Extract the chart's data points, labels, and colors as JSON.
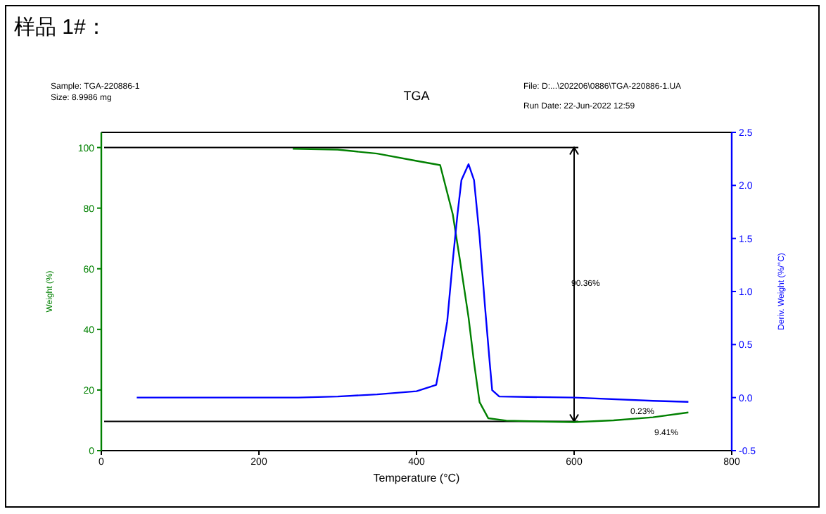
{
  "chart_data": {
    "type": "line",
    "title": "样品 1#：",
    "subtitle": "TGA",
    "xlabel": "Temperature (°C)",
    "ylabel": "Weight (%)",
    "y2label": "Deriv. Weight (%/°C)",
    "annotations": [
      "Sample: TGA-220886-1",
      "Size:  8.9986 mg",
      "File: D:...\\202206\\0886\\TGA-220886-1.UA",
      "Run Date: 22-Jun-2022  12:59",
      "90.36%",
      "0.23%",
      "9.41%"
    ],
    "ref_lines": [
      {
        "axis": "x",
        "value": 600
      },
      {
        "axis": "y",
        "value": 100
      },
      {
        "axis": "y",
        "value": 9.64
      }
    ],
    "xlim": [
      0,
      800
    ],
    "xticks": [
      0,
      200,
      400,
      600,
      800
    ],
    "ylim": [
      0,
      105
    ],
    "yticks": [
      0,
      20,
      40,
      60,
      80,
      100
    ],
    "y2lim": [
      -0.5,
      2.5
    ],
    "y2ticks": [
      -0.5,
      {
        "value": 0,
        "label": "0.0"
      },
      0.5,
      {
        "value": 1,
        "label": "1.0"
      },
      1.5,
      {
        "value": 2,
        "label": "2.0"
      },
      2.5
    ],
    "series": [
      {
        "color": "#008000",
        "x": [
          243,
          300,
          350,
          400,
          430,
          446,
          455,
          466,
          473,
          480,
          491,
          514,
          560,
          600,
          650,
          700,
          745
        ],
        "values": [
          99.6,
          99.3,
          98,
          95.6,
          94.2,
          78,
          63,
          44,
          29,
          16,
          10.7,
          9.9,
          9.6,
          9.4,
          10,
          11,
          12.6
        ]
      },
      {
        "color": "#0000ff",
        "axis": "y2",
        "x": [
          45,
          250,
          300,
          350,
          400,
          425,
          430,
          439,
          446,
          452,
          457,
          466,
          473,
          480,
          487,
          493,
          496,
          505,
          600,
          700,
          745
        ],
        "values": [
          0,
          0,
          0.01,
          0.03,
          0.06,
          0.12,
          0.32,
          0.72,
          1.29,
          1.73,
          2.05,
          2.2,
          2.05,
          1.52,
          0.85,
          0.32,
          0.07,
          0.01,
          0,
          -0.03,
          -0.04
        ]
      }
    ]
  }
}
